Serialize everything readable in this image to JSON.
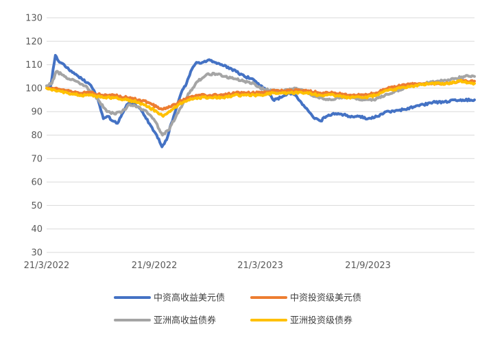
{
  "chart_data": {
    "type": "line",
    "title": "",
    "xlabel": "",
    "ylabel": "",
    "ylim": [
      30,
      130
    ],
    "yticks": [
      30,
      40,
      50,
      60,
      70,
      80,
      90,
      100,
      110,
      120,
      130
    ],
    "xlim": [
      "2022-03-21",
      "2024-03-21"
    ],
    "x_tick_labels": [
      {
        "date": "2022-03-21",
        "label": "21/3/2022"
      },
      {
        "date": "2022-09-21",
        "label": "21/9/2022"
      },
      {
        "date": "2023-03-21",
        "label": "21/3/2023"
      },
      {
        "date": "2023-09-21",
        "label": "21/9/2023"
      }
    ],
    "grid": true,
    "legend_position": "bottom",
    "series": [
      {
        "name": "中资高收益美元债",
        "color": "#4472C4",
        "points": [
          [
            "2022-03-21",
            101
          ],
          [
            "2022-03-28",
            101
          ],
          [
            "2022-04-01",
            108
          ],
          [
            "2022-04-05",
            114
          ],
          [
            "2022-04-12",
            111
          ],
          [
            "2022-04-20",
            110
          ],
          [
            "2022-04-28",
            108
          ],
          [
            "2022-05-08",
            106
          ],
          [
            "2022-05-20",
            104
          ],
          [
            "2022-06-01",
            102
          ],
          [
            "2022-06-10",
            99
          ],
          [
            "2022-06-18",
            94
          ],
          [
            "2022-06-26",
            87
          ],
          [
            "2022-07-04",
            88
          ],
          [
            "2022-07-12",
            86
          ],
          [
            "2022-07-20",
            85
          ],
          [
            "2022-07-28",
            89
          ],
          [
            "2022-08-05",
            93
          ],
          [
            "2022-08-15",
            94
          ],
          [
            "2022-08-25",
            92
          ],
          [
            "2022-09-05",
            88
          ],
          [
            "2022-09-15",
            84
          ],
          [
            "2022-09-25",
            80
          ],
          [
            "2022-10-04",
            75
          ],
          [
            "2022-10-12",
            78
          ],
          [
            "2022-10-20",
            85
          ],
          [
            "2022-10-28",
            91
          ],
          [
            "2022-11-06",
            98
          ],
          [
            "2022-11-15",
            102
          ],
          [
            "2022-11-24",
            108
          ],
          [
            "2022-12-02",
            111
          ],
          [
            "2022-12-12",
            111
          ],
          [
            "2022-12-22",
            112
          ],
          [
            "2023-01-02",
            111
          ],
          [
            "2023-01-12",
            110
          ],
          [
            "2023-01-25",
            109
          ],
          [
            "2023-02-08",
            107
          ],
          [
            "2023-02-22",
            105
          ],
          [
            "2023-03-08",
            104
          ],
          [
            "2023-03-21",
            101
          ],
          [
            "2023-04-01",
            99
          ],
          [
            "2023-04-12",
            95
          ],
          [
            "2023-04-25",
            96
          ],
          [
            "2023-05-08",
            98
          ],
          [
            "2023-05-20",
            97
          ],
          [
            "2023-06-01",
            93
          ],
          [
            "2023-06-12",
            90
          ],
          [
            "2023-06-22",
            87
          ],
          [
            "2023-07-02",
            86
          ],
          [
            "2023-07-12",
            88
          ],
          [
            "2023-07-22",
            89
          ],
          [
            "2023-08-05",
            89
          ],
          [
            "2023-08-20",
            88
          ],
          [
            "2023-09-05",
            88
          ],
          [
            "2023-09-21",
            87
          ],
          [
            "2023-10-08",
            88
          ],
          [
            "2023-10-22",
            90
          ],
          [
            "2023-11-05",
            90
          ],
          [
            "2023-11-22",
            91
          ],
          [
            "2023-12-08",
            92
          ],
          [
            "2023-12-25",
            93
          ],
          [
            "2024-01-10",
            94
          ],
          [
            "2024-01-28",
            94
          ],
          [
            "2024-02-15",
            95
          ],
          [
            "2024-03-01",
            95
          ],
          [
            "2024-03-21",
            95
          ]
        ]
      },
      {
        "name": "中资投资级美元债",
        "color": "#ED7D31",
        "points": [
          [
            "2022-03-21",
            100
          ],
          [
            "2022-04-05",
            100
          ],
          [
            "2022-04-25",
            99
          ],
          [
            "2022-05-15",
            98
          ],
          [
            "2022-06-05",
            98
          ],
          [
            "2022-06-25",
            97
          ],
          [
            "2022-07-15",
            97
          ],
          [
            "2022-08-05",
            96
          ],
          [
            "2022-08-25",
            95
          ],
          [
            "2022-09-10",
            94
          ],
          [
            "2022-09-25",
            92
          ],
          [
            "2022-10-06",
            91
          ],
          [
            "2022-10-18",
            92
          ],
          [
            "2022-11-01",
            94
          ],
          [
            "2022-11-18",
            96
          ],
          [
            "2022-12-05",
            97
          ],
          [
            "2022-12-25",
            97
          ],
          [
            "2023-01-15",
            97
          ],
          [
            "2023-02-05",
            98
          ],
          [
            "2023-02-25",
            98
          ],
          [
            "2023-03-21",
            98
          ],
          [
            "2023-04-15",
            99
          ],
          [
            "2023-05-10",
            99
          ],
          [
            "2023-06-05",
            99
          ],
          [
            "2023-07-01",
            98
          ],
          [
            "2023-07-25",
            98
          ],
          [
            "2023-08-20",
            97
          ],
          [
            "2023-09-15",
            97
          ],
          [
            "2023-10-05",
            98
          ],
          [
            "2023-10-25",
            100
          ],
          [
            "2023-11-15",
            101
          ],
          [
            "2023-12-10",
            102
          ],
          [
            "2024-01-05",
            102
          ],
          [
            "2024-02-01",
            102
          ],
          [
            "2024-02-25",
            103
          ],
          [
            "2024-03-21",
            103
          ]
        ]
      },
      {
        "name": "亚洲高收益债券",
        "color": "#A5A5A5",
        "points": [
          [
            "2022-03-21",
            101
          ],
          [
            "2022-03-30",
            102
          ],
          [
            "2022-04-06",
            107
          ],
          [
            "2022-04-15",
            106
          ],
          [
            "2022-04-28",
            104
          ],
          [
            "2022-05-10",
            103
          ],
          [
            "2022-05-25",
            101
          ],
          [
            "2022-06-08",
            98
          ],
          [
            "2022-06-20",
            94
          ],
          [
            "2022-07-02",
            90
          ],
          [
            "2022-07-15",
            89
          ],
          [
            "2022-07-28",
            90
          ],
          [
            "2022-08-10",
            93
          ],
          [
            "2022-08-25",
            92
          ],
          [
            "2022-09-08",
            90
          ],
          [
            "2022-09-22",
            86
          ],
          [
            "2022-10-05",
            80
          ],
          [
            "2022-10-15",
            82
          ],
          [
            "2022-10-28",
            88
          ],
          [
            "2022-11-10",
            94
          ],
          [
            "2022-11-22",
            99
          ],
          [
            "2022-12-05",
            103
          ],
          [
            "2022-12-20",
            106
          ],
          [
            "2023-01-05",
            106
          ],
          [
            "2023-01-20",
            105
          ],
          [
            "2023-02-05",
            104
          ],
          [
            "2023-02-22",
            103
          ],
          [
            "2023-03-10",
            102
          ],
          [
            "2023-03-21",
            100
          ],
          [
            "2023-04-10",
            99
          ],
          [
            "2023-05-01",
            99
          ],
          [
            "2023-05-20",
            100
          ],
          [
            "2023-06-10",
            98
          ],
          [
            "2023-06-28",
            96
          ],
          [
            "2023-07-15",
            95
          ],
          [
            "2023-08-05",
            96
          ],
          [
            "2023-08-25",
            96
          ],
          [
            "2023-09-15",
            95
          ],
          [
            "2023-10-01",
            95
          ],
          [
            "2023-10-20",
            97
          ],
          [
            "2023-11-10",
            99
          ],
          [
            "2023-12-01",
            101
          ],
          [
            "2023-12-25",
            102
          ],
          [
            "2024-01-20",
            103
          ],
          [
            "2024-02-15",
            104
          ],
          [
            "2024-03-05",
            105
          ],
          [
            "2024-03-21",
            105
          ]
        ]
      },
      {
        "name": "亚洲投资级债券",
        "color": "#FFC000",
        "points": [
          [
            "2022-03-21",
            100
          ],
          [
            "2022-04-05",
            99
          ],
          [
            "2022-04-25",
            98
          ],
          [
            "2022-05-15",
            97
          ],
          [
            "2022-06-05",
            97
          ],
          [
            "2022-06-25",
            96
          ],
          [
            "2022-07-15",
            96
          ],
          [
            "2022-08-05",
            95
          ],
          [
            "2022-08-25",
            94
          ],
          [
            "2022-09-10",
            92
          ],
          [
            "2022-09-25",
            90
          ],
          [
            "2022-10-06",
            88
          ],
          [
            "2022-10-18",
            90
          ],
          [
            "2022-11-01",
            93
          ],
          [
            "2022-11-18",
            95
          ],
          [
            "2022-12-05",
            96
          ],
          [
            "2022-12-25",
            96
          ],
          [
            "2023-01-15",
            96
          ],
          [
            "2023-02-05",
            97
          ],
          [
            "2023-02-25",
            97
          ],
          [
            "2023-03-21",
            97
          ],
          [
            "2023-04-15",
            98
          ],
          [
            "2023-05-10",
            98
          ],
          [
            "2023-06-05",
            98
          ],
          [
            "2023-07-01",
            97
          ],
          [
            "2023-07-25",
            97
          ],
          [
            "2023-08-20",
            96
          ],
          [
            "2023-09-15",
            96
          ],
          [
            "2023-10-05",
            97
          ],
          [
            "2023-10-25",
            99
          ],
          [
            "2023-11-15",
            100
          ],
          [
            "2023-12-10",
            101
          ],
          [
            "2024-01-05",
            102
          ],
          [
            "2024-02-01",
            102
          ],
          [
            "2024-02-25",
            103
          ],
          [
            "2024-03-21",
            102
          ]
        ]
      }
    ]
  }
}
